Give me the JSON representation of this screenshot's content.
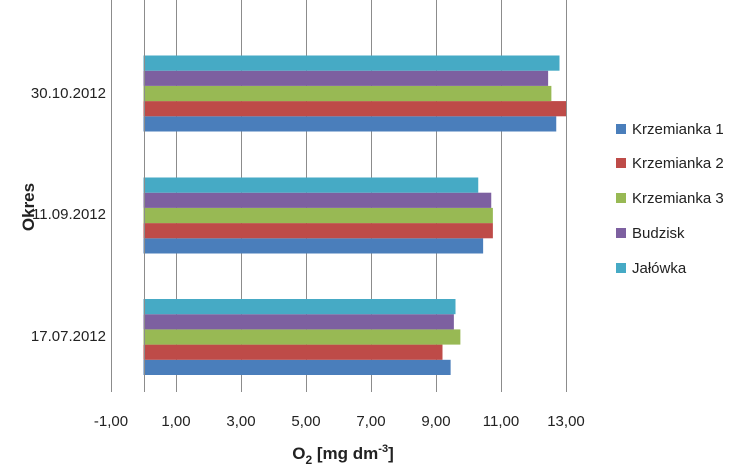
{
  "chart_data": {
    "type": "bar",
    "orientation": "horizontal",
    "categories": [
      "17.07.2012",
      "11.09.2012",
      "30.10.2012"
    ],
    "series": [
      {
        "name": "Krzemianka  1",
        "color": "#4a7ebb",
        "values": [
          9.45,
          10.45,
          12.7
        ]
      },
      {
        "name": "Krzemianka 2",
        "color": "#be4b48",
        "values": [
          9.2,
          10.75,
          13.0
        ]
      },
      {
        "name": "Krzemianka 3",
        "color": "#98b954",
        "values": [
          9.75,
          10.75,
          12.55
        ]
      },
      {
        "name": "Budzisk",
        "color": "#7d60a0",
        "values": [
          9.55,
          10.7,
          12.45
        ]
      },
      {
        "name": "Jałówka",
        "color": "#46aac5",
        "values": [
          9.6,
          10.3,
          12.8
        ]
      }
    ],
    "xlim": [
      -1,
      13
    ],
    "x_ticks": [
      "-1,00",
      "1,00",
      "3,00",
      "5,00",
      "7,00",
      "9,00",
      "11,00",
      "13,00"
    ],
    "xlabel": {
      "main": "O",
      "sub": "2",
      "pre": " [mg dm",
      "sup": "-3",
      "post": "]"
    },
    "ylabel": "Okres",
    "grid": "vertical",
    "legend": "right"
  }
}
